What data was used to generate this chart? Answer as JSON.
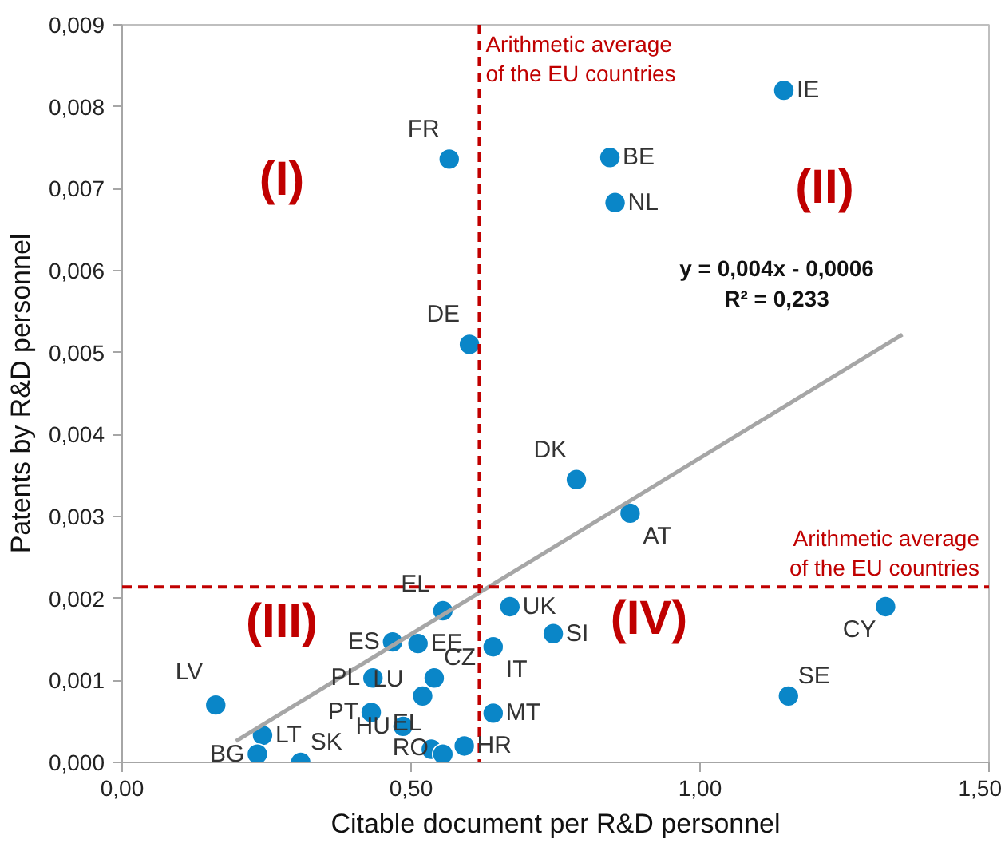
{
  "chart_data": {
    "type": "scatter",
    "xlabel": "Citable document per R&D personnel",
    "ylabel": "Patents by R&D personnel",
    "xlim": [
      0,
      1.5
    ],
    "ylim": [
      0,
      0.009
    ],
    "xticks": [
      {
        "value": 0,
        "label": "0,00"
      },
      {
        "value": 0.5,
        "label": "0,50"
      },
      {
        "value": 1,
        "label": "1,00"
      },
      {
        "value": 1.5,
        "label": "1,50"
      }
    ],
    "yticks": [
      {
        "value": 0,
        "label": "0,000"
      },
      {
        "value": 0.001,
        "label": "0,001"
      },
      {
        "value": 0.002,
        "label": "0,002"
      },
      {
        "value": 0.003,
        "label": "0,003"
      },
      {
        "value": 0.004,
        "label": "0,004"
      },
      {
        "value": 0.005,
        "label": "0,005"
      },
      {
        "value": 0.006,
        "label": "0,006"
      },
      {
        "value": 0.007,
        "label": "0,007"
      },
      {
        "value": 0.008,
        "label": "0,008"
      },
      {
        "value": 0.009,
        "label": "0,009"
      }
    ],
    "grid": false,
    "marker": "circle",
    "series": [
      {
        "name": "IE",
        "color": "#0a86c8",
        "x": [
          1.145
        ],
        "values": [
          0.0082
        ]
      },
      {
        "name": "FR",
        "color": "#0a86c8",
        "x": [
          0.566
        ],
        "values": [
          0.00736
        ]
      },
      {
        "name": "BE",
        "color": "#0a86c8",
        "x": [
          0.844
        ],
        "values": [
          0.00738
        ]
      },
      {
        "name": "NL",
        "color": "#0a86c8",
        "x": [
          0.853
        ],
        "values": [
          0.00683
        ]
      },
      {
        "name": "DE",
        "color": "#0a86c8",
        "x": [
          0.601
        ],
        "values": [
          0.0051
        ]
      },
      {
        "name": "DK",
        "color": "#0a86c8",
        "x": [
          0.786
        ],
        "values": [
          0.00345
        ]
      },
      {
        "name": "AT",
        "color": "#0a86c8",
        "x": [
          0.879
        ],
        "values": [
          0.00304
        ]
      },
      {
        "name": "EL",
        "color": "#0a86c8",
        "x": [
          0.555
        ],
        "values": [
          0.00185
        ]
      },
      {
        "name": "UK",
        "color": "#0a86c8",
        "x": [
          0.671
        ],
        "values": [
          0.0019
        ]
      },
      {
        "name": "SI",
        "color": "#0a86c8",
        "x": [
          0.746
        ],
        "values": [
          0.00157
        ]
      },
      {
        "name": "IT",
        "color": "#0a86c8",
        "x": [
          0.642
        ],
        "values": [
          0.00141
        ]
      },
      {
        "name": "CY",
        "color": "#0a86c8",
        "x": [
          1.321
        ],
        "values": [
          0.0019
        ]
      },
      {
        "name": "SE",
        "color": "#0a86c8",
        "x": [
          1.153
        ],
        "values": [
          0.00081
        ]
      },
      {
        "name": "MT",
        "color": "#0a86c8",
        "x": [
          0.642
        ],
        "values": [
          0.0006
        ]
      },
      {
        "name": "HR",
        "color": "#0a86c8",
        "x": [
          0.592
        ],
        "values": [
          0.0002
        ]
      },
      {
        "name": "ES",
        "color": "#0a86c8",
        "x": [
          0.468
        ],
        "values": [
          0.00147
        ]
      },
      {
        "name": "EE",
        "color": "#0a86c8",
        "x": [
          0.512
        ],
        "values": [
          0.00145
        ]
      },
      {
        "name": "PL",
        "color": "#0a86c8",
        "x": [
          0.434
        ],
        "values": [
          0.00103
        ]
      },
      {
        "name": "CZ",
        "color": "#0a86c8",
        "x": [
          0.54
        ],
        "values": [
          0.00103
        ]
      },
      {
        "name": "LU",
        "color": "#0a86c8",
        "x": [
          0.52
        ],
        "values": [
          0.00081
        ]
      },
      {
        "name": "PT",
        "color": "#0a86c8",
        "x": [
          0.431
        ],
        "values": [
          0.00061
        ]
      },
      {
        "name": "HU",
        "color": "#0a86c8",
        "x": [
          0.486
        ],
        "values": [
          0.00044
        ]
      },
      {
        "name": "EL",
        "color": "#0a86c8",
        "x": [
          0.535
        ],
        "values": [
          0.00016
        ]
      },
      {
        "name": "RO",
        "color": "#0a86c8",
        "x": [
          0.555
        ],
        "values": [
          0.0001
        ]
      },
      {
        "name": "LV",
        "color": "#0a86c8",
        "x": [
          0.162
        ],
        "values": [
          0.0007
        ]
      },
      {
        "name": "LT",
        "color": "#0a86c8",
        "x": [
          0.243
        ],
        "values": [
          0.00033
        ]
      },
      {
        "name": "BG",
        "color": "#0a86c8",
        "x": [
          0.234
        ],
        "values": [
          0.0001
        ]
      },
      {
        "name": "SK",
        "color": "#0a86c8",
        "x": [
          0.309
        ],
        "values": [
          0.0
        ]
      },
      {
        "type": "line",
        "marker": "none",
        "color": "#a6a6a6",
        "x": [
          0.197,
          1.35
        ],
        "values": [
          0.00026,
          0.00522
        ]
      }
    ],
    "ref_lines": [
      {
        "axis": "x",
        "value": 0.618,
        "label": "Arithmetic average\nof the EU countries",
        "color": "#c00000",
        "line_style": "dashed"
      },
      {
        "axis": "y",
        "value": 0.00214,
        "label": "Arithmetic average\nof the EU countries",
        "color": "#c00000",
        "line_style": "dashed"
      }
    ],
    "annotations": [
      "(I)",
      "(II)",
      "(III)",
      "(IV)",
      "y = 0,004x - 0,0006\nR² = 0,233"
    ]
  }
}
